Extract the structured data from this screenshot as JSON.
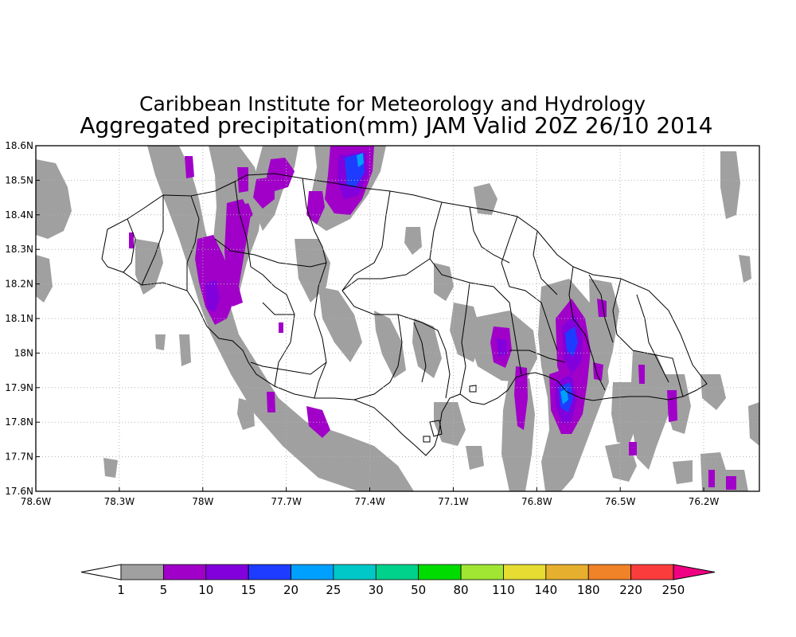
{
  "title": {
    "line1": "Caribbean Institute for Meteorology and Hydrology",
    "line2": "Aggregated precipitation(mm) JAM Valid 20Z 26/10 2014"
  },
  "map": {
    "lon_range": [
      -78.6,
      -76.0
    ],
    "lat_range": [
      17.6,
      18.6
    ],
    "grid": true,
    "y_ticks": [
      {
        "label": "18.6N",
        "value": 18.6
      },
      {
        "label": "18.5N",
        "value": 18.5
      },
      {
        "label": "18.4N",
        "value": 18.4
      },
      {
        "label": "18.3N",
        "value": 18.3
      },
      {
        "label": "18.2N",
        "value": 18.2
      },
      {
        "label": "18.1N",
        "value": 18.1
      },
      {
        "label": "18N",
        "value": 18.0
      },
      {
        "label": "17.9N",
        "value": 17.9
      },
      {
        "label": "17.8N",
        "value": 17.8
      },
      {
        "label": "17.7N",
        "value": 17.7
      },
      {
        "label": "17.6N",
        "value": 17.6
      }
    ],
    "x_ticks": [
      {
        "label": "78.6W",
        "value": -78.6
      },
      {
        "label": "78.3W",
        "value": -78.3
      },
      {
        "label": "78W",
        "value": -78.0
      },
      {
        "label": "77.7W",
        "value": -77.7
      },
      {
        "label": "77.4W",
        "value": -77.4
      },
      {
        "label": "77.1W",
        "value": -77.1
      },
      {
        "label": "76.8W",
        "value": -76.8
      },
      {
        "label": "76.5W",
        "value": -76.5
      },
      {
        "label": "76.2W",
        "value": -76.2
      }
    ]
  },
  "legend": {
    "levels": [
      "1",
      "5",
      "10",
      "15",
      "20",
      "25",
      "30",
      "50",
      "80",
      "110",
      "140",
      "180",
      "220",
      "250"
    ],
    "colors": [
      "#a0a0a0",
      "#a000c8",
      "#8200dc",
      "#1e3cff",
      "#00a0ff",
      "#00c8c8",
      "#00d28c",
      "#00dc00",
      "#a0e632",
      "#e6dc32",
      "#e6af2d",
      "#f08228",
      "#fa3c3c",
      "#f00082"
    ]
  }
}
